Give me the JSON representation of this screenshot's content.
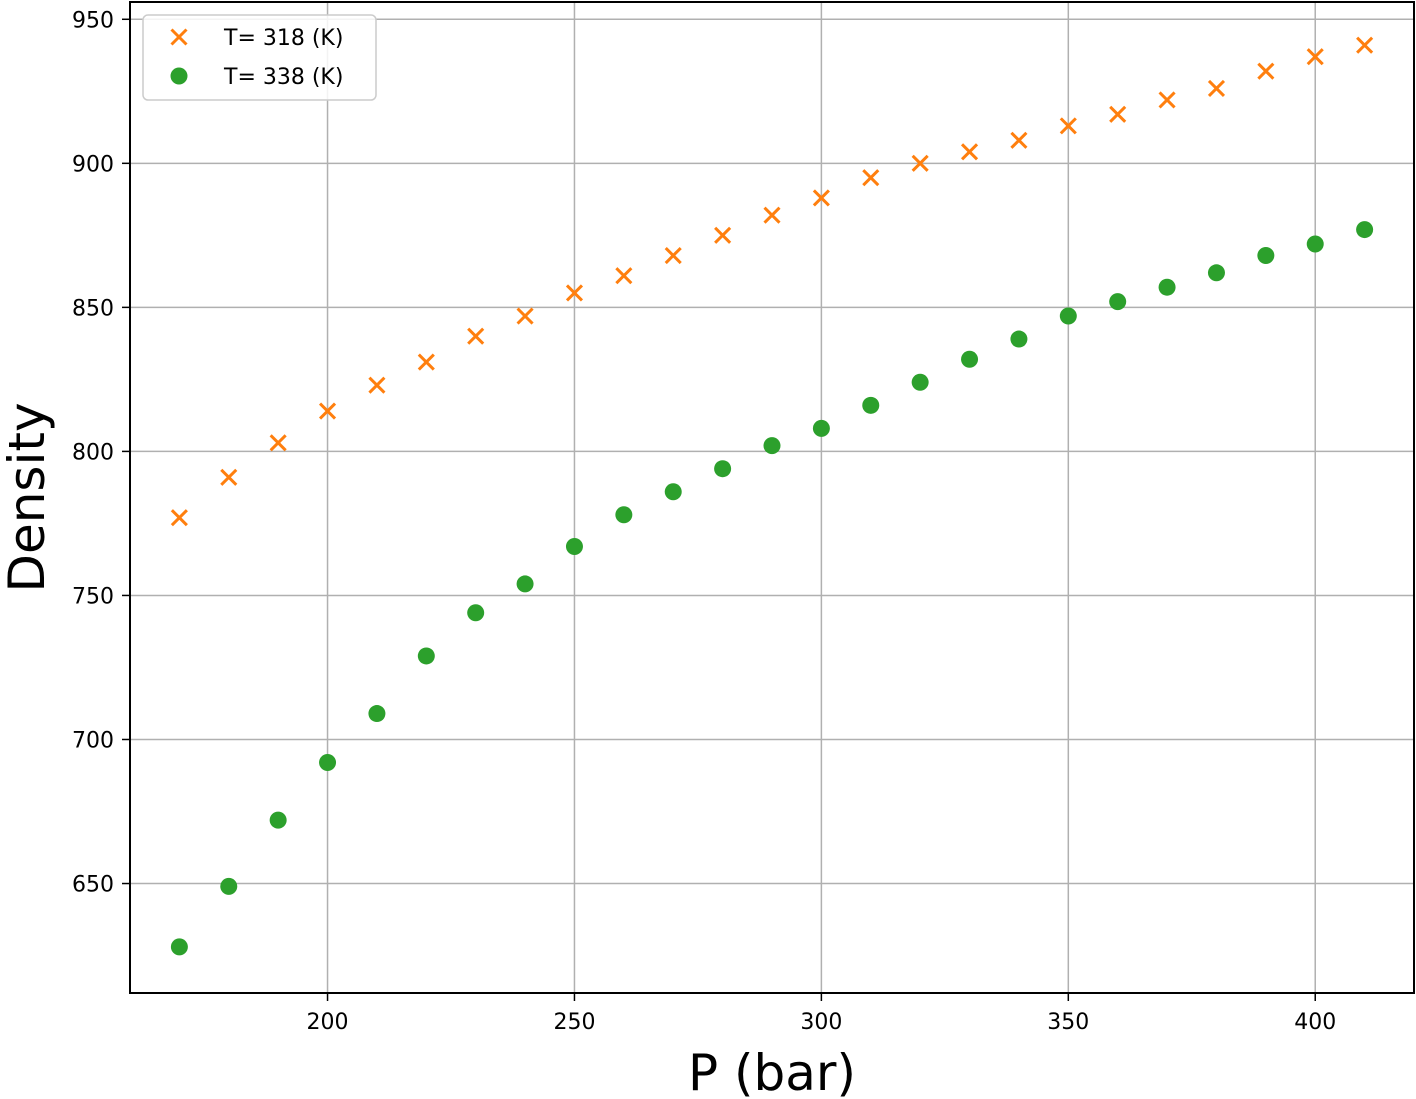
{
  "chart_data": {
    "type": "scatter",
    "xlabel": "P (bar)",
    "ylabel": "Density",
    "xlim": [
      160,
      420
    ],
    "ylim": [
      612,
      956
    ],
    "xticks": [
      200,
      250,
      300,
      350,
      400
    ],
    "yticks": [
      650,
      700,
      750,
      800,
      850,
      900,
      950
    ],
    "grid": true,
    "legend_position": "top-left",
    "series": [
      {
        "name": "T= 318 (K)",
        "marker": "x",
        "color": "#ff7f0e",
        "x": [
          170,
          180,
          190,
          200,
          210,
          220,
          230,
          240,
          250,
          260,
          270,
          280,
          290,
          300,
          310,
          320,
          330,
          340,
          350,
          360,
          370,
          380,
          390,
          400,
          410
        ],
        "y": [
          777,
          791,
          803,
          814,
          823,
          831,
          840,
          847,
          855,
          861,
          868,
          875,
          882,
          888,
          895,
          900,
          904,
          908,
          913,
          917,
          922,
          926,
          932,
          937,
          941
        ]
      },
      {
        "name": "T= 338 (K)",
        "marker": "o",
        "color": "#2ca02c",
        "x": [
          170,
          180,
          190,
          200,
          210,
          220,
          230,
          240,
          250,
          260,
          270,
          280,
          290,
          300,
          310,
          320,
          330,
          340,
          350,
          360,
          370,
          380,
          390,
          400,
          410
        ],
        "y": [
          628,
          649,
          672,
          692,
          709,
          729,
          744,
          754,
          767,
          778,
          786,
          794,
          802,
          808,
          816,
          824,
          832,
          839,
          847,
          852,
          857,
          862,
          868,
          872,
          877
        ]
      }
    ]
  }
}
